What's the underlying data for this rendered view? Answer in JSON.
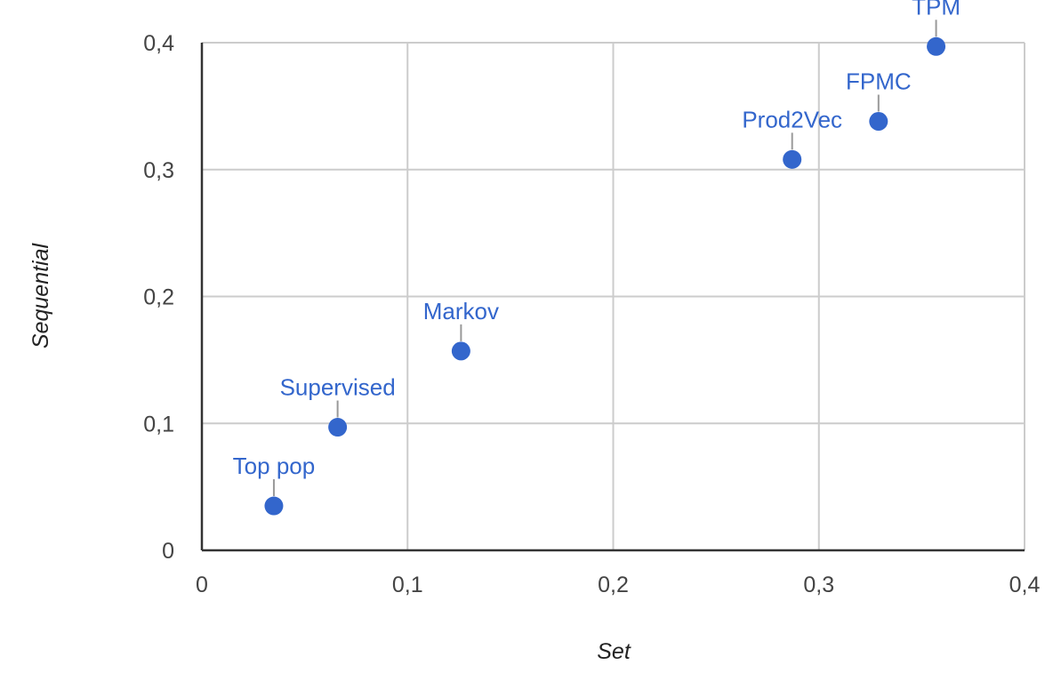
{
  "chart_data": {
    "type": "scatter",
    "title": "",
    "xlabel": "Set",
    "ylabel": "Sequential",
    "xlim": [
      0,
      0.4
    ],
    "ylim": [
      0,
      0.4
    ],
    "grid": true,
    "legend": "none",
    "point_color": "#3366cc",
    "xticks": [
      {
        "value": 0,
        "label": "0"
      },
      {
        "value": 0.1,
        "label": "0,1"
      },
      {
        "value": 0.2,
        "label": "0,2"
      },
      {
        "value": 0.3,
        "label": "0,3"
      },
      {
        "value": 0.4,
        "label": "0,4"
      }
    ],
    "yticks": [
      {
        "value": 0,
        "label": "0"
      },
      {
        "value": 0.1,
        "label": "0,1"
      },
      {
        "value": 0.2,
        "label": "0,2"
      },
      {
        "value": 0.3,
        "label": "0,3"
      },
      {
        "value": 0.4,
        "label": "0,4"
      }
    ],
    "points": [
      {
        "label": "Top pop",
        "x": 0.035,
        "y": 0.035
      },
      {
        "label": "Supervised",
        "x": 0.066,
        "y": 0.097
      },
      {
        "label": "Markov",
        "x": 0.126,
        "y": 0.157
      },
      {
        "label": "Prod2Vec",
        "x": 0.287,
        "y": 0.308
      },
      {
        "label": "FPMC",
        "x": 0.329,
        "y": 0.338
      },
      {
        "label": "TPM",
        "x": 0.357,
        "y": 0.397
      }
    ]
  }
}
